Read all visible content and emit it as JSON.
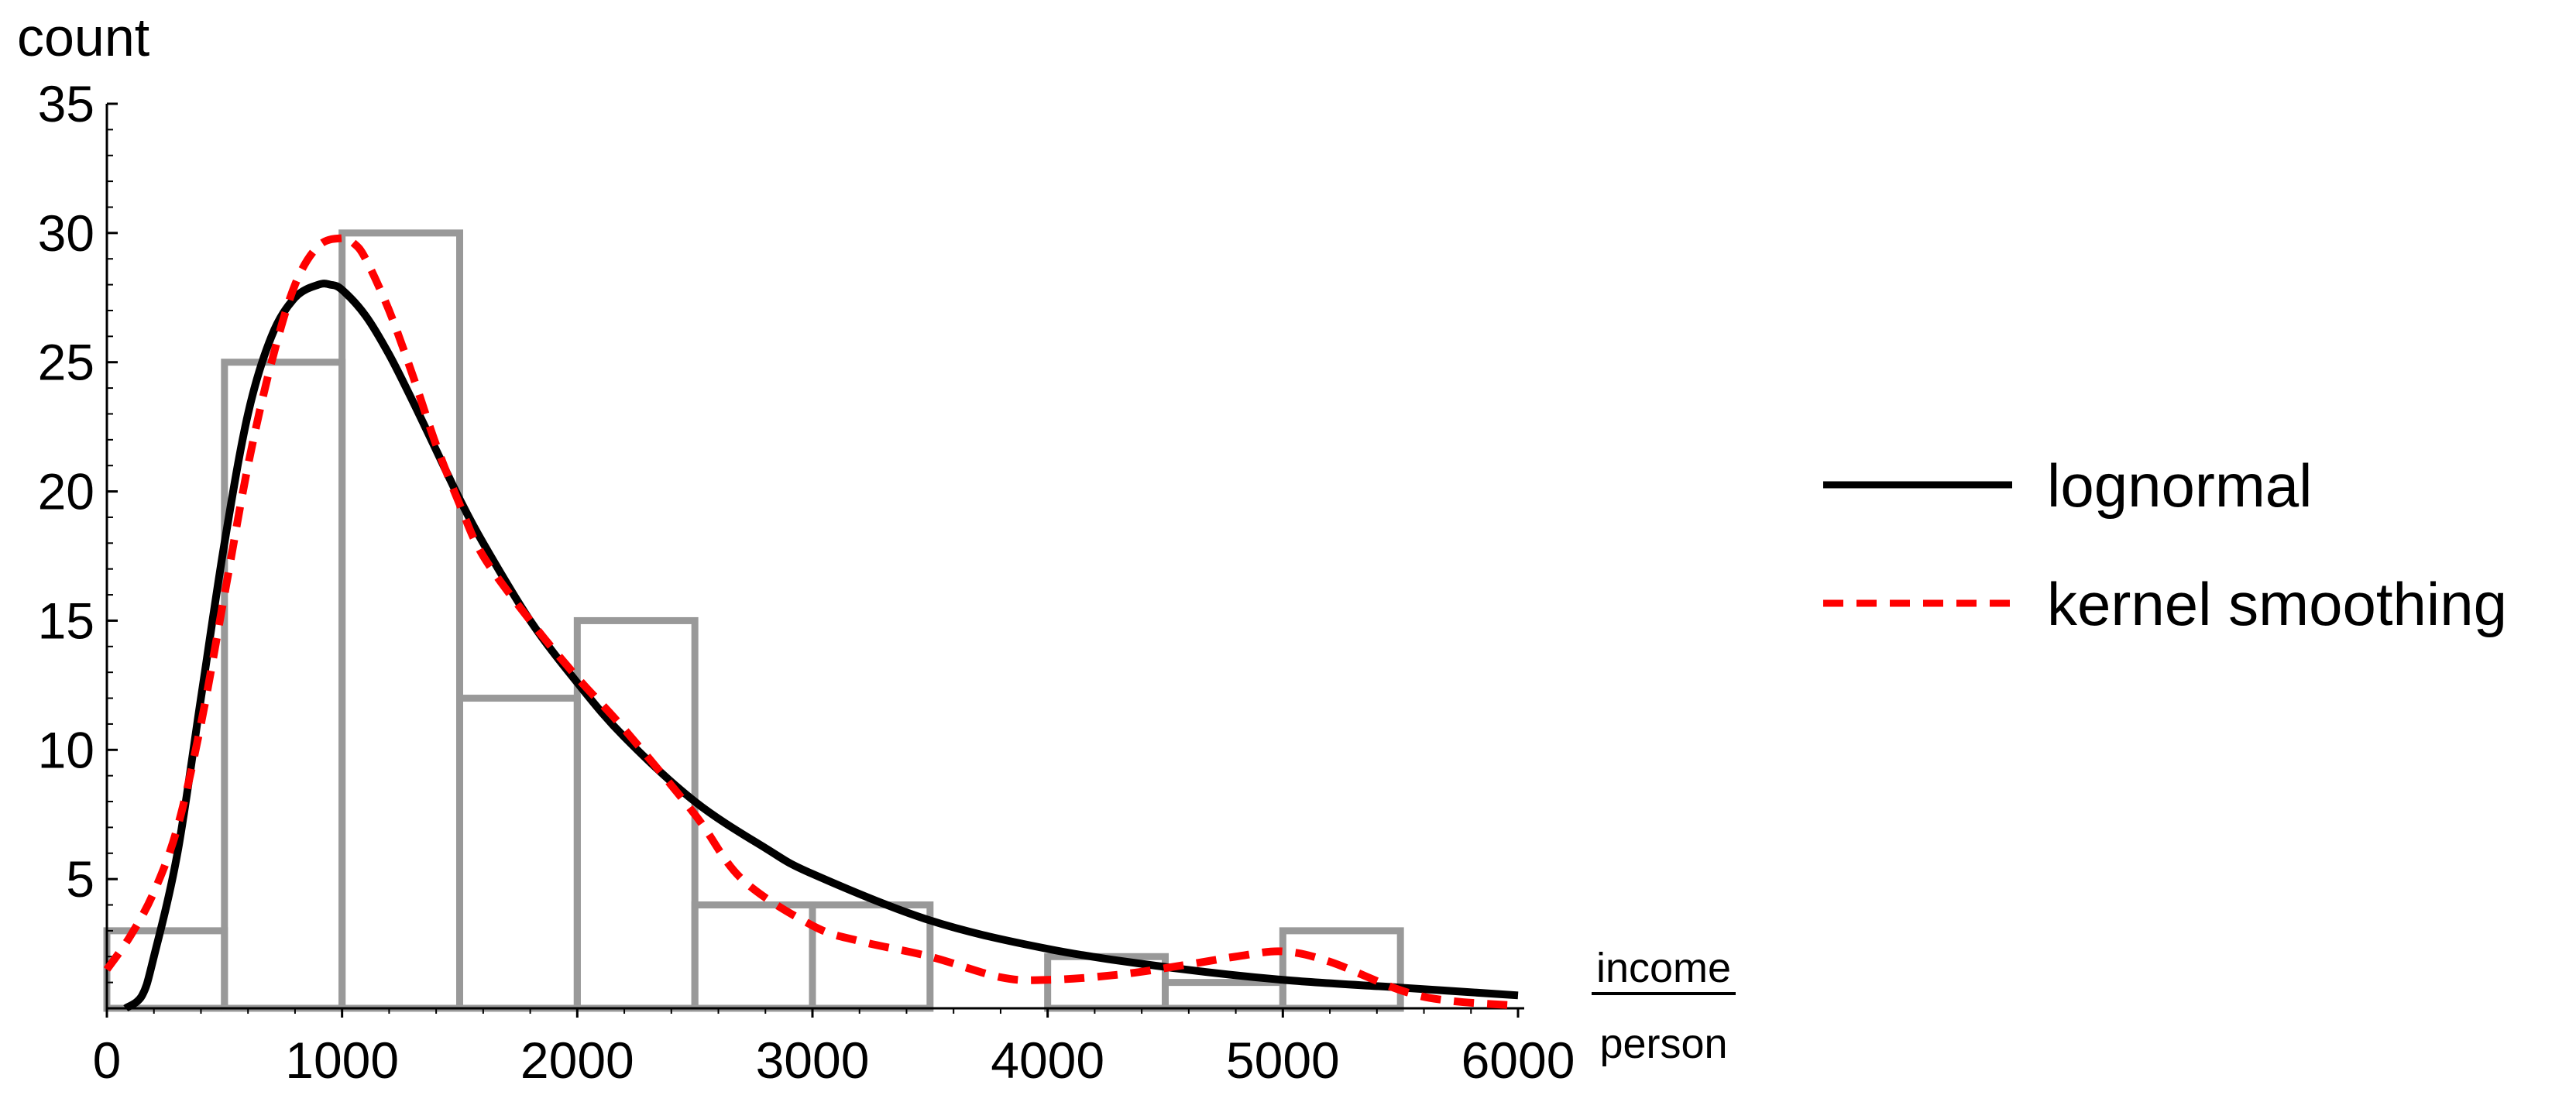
{
  "chart_data": {
    "type": "bar",
    "ylabel": "count",
    "xlabel_numerator": "income",
    "xlabel_denominator": "person",
    "xlim": [
      0,
      6000
    ],
    "ylim": [
      0,
      35
    ],
    "x_ticks": [
      0,
      1000,
      2000,
      3000,
      4000,
      5000,
      6000
    ],
    "y_ticks": [
      5,
      10,
      15,
      20,
      25,
      30,
      35
    ],
    "grid": false,
    "legend_position": "right",
    "histogram": {
      "bin_width": 500,
      "bin_edges": [
        0,
        500,
        1000,
        1500,
        2000,
        2500,
        3000,
        3500,
        4000,
        4500,
        5000,
        5500
      ],
      "counts": [
        3,
        25,
        30,
        12,
        15,
        4,
        4,
        0,
        2,
        1,
        3
      ],
      "edge_color": "#999999"
    },
    "series": [
      {
        "name": "lognormal",
        "style": "solid",
        "color": "#000000",
        "x": [
          80,
          150,
          200,
          300,
          400,
          500,
          600,
          700,
          800,
          900,
          950,
          1000,
          1100,
          1200,
          1300,
          1400,
          1500,
          1600,
          1800,
          2000,
          2200,
          2500,
          2800,
          3000,
          3500,
          4000,
          4500,
          5000,
          5500,
          6000
        ],
        "y": [
          0,
          0.5,
          2,
          6,
          12,
          18,
          23,
          26,
          27.5,
          28,
          28,
          27.8,
          26.8,
          25.3,
          23.5,
          21.6,
          19.7,
          18,
          15,
          12.6,
          10.5,
          8,
          6.2,
          5.2,
          3.4,
          2.3,
          1.6,
          1.1,
          0.8,
          0.5
        ]
      },
      {
        "name": "kernel smoothing",
        "style": "dashed",
        "color": "#ff0000",
        "x": [
          0,
          100,
          200,
          300,
          400,
          500,
          600,
          700,
          800,
          900,
          1000,
          1050,
          1100,
          1200,
          1300,
          1400,
          1500,
          1600,
          1800,
          2000,
          2200,
          2500,
          2700,
          3000,
          3200,
          3500,
          3800,
          4000,
          4300,
          4600,
          4800,
          5000,
          5200,
          5500,
          5700,
          6000
        ],
        "y": [
          1.5,
          2.8,
          4.5,
          7,
          11,
          16,
          21,
          25,
          28,
          29.5,
          29.8,
          29.6,
          29,
          27,
          24.5,
          21.8,
          19.5,
          17.5,
          15,
          12.8,
          10.8,
          7.5,
          5,
          3.2,
          2.6,
          2,
          1.2,
          1.1,
          1.3,
          1.7,
          2,
          2.2,
          1.8,
          0.7,
          0.3,
          0.1
        ]
      }
    ]
  }
}
